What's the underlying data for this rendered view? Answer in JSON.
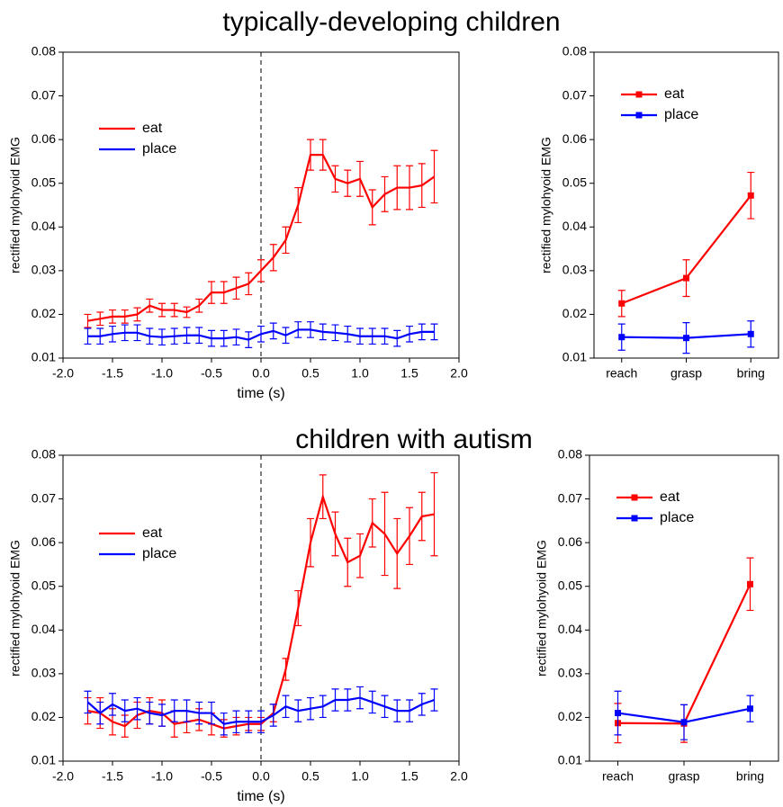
{
  "chart_data": [
    {
      "type": "line",
      "title": "typically-developing children",
      "xlabel": "time (s)",
      "ylabel": "rectified mylohyoid EMG",
      "x": [
        -1.75,
        -1.625,
        -1.5,
        -1.375,
        -1.25,
        -1.125,
        -1.0,
        -0.875,
        -0.75,
        -0.625,
        -0.5,
        -0.375,
        -0.25,
        -0.125,
        0,
        0.125,
        0.25,
        0.375,
        0.5,
        0.625,
        0.75,
        0.875,
        1.0,
        1.125,
        1.25,
        1.375,
        1.5,
        1.625,
        1.75
      ],
      "series": [
        {
          "name": "eat",
          "color": "#ff0000",
          "values": [
            0.0185,
            0.019,
            0.0195,
            0.0195,
            0.02,
            0.022,
            0.021,
            0.021,
            0.0205,
            0.022,
            0.025,
            0.025,
            0.026,
            0.027,
            0.03,
            0.033,
            0.037,
            0.045,
            0.0565,
            0.0565,
            0.051,
            0.05,
            0.051,
            0.0445,
            0.0475,
            0.049,
            0.049,
            0.0495,
            0.0515
          ],
          "errors": [
            0.0015,
            0.0015,
            0.0015,
            0.0015,
            0.0015,
            0.0015,
            0.0015,
            0.0015,
            0.0012,
            0.0015,
            0.0025,
            0.0025,
            0.0025,
            0.0025,
            0.0025,
            0.003,
            0.003,
            0.004,
            0.0035,
            0.0035,
            0.003,
            0.003,
            0.004,
            0.004,
            0.004,
            0.005,
            0.005,
            0.005,
            0.006
          ]
        },
        {
          "name": "place",
          "color": "#0000ff",
          "values": [
            0.015,
            0.015,
            0.0155,
            0.0158,
            0.0158,
            0.015,
            0.0148,
            0.015,
            0.0152,
            0.0152,
            0.0145,
            0.0145,
            0.0148,
            0.0142,
            0.0155,
            0.0162,
            0.0152,
            0.0165,
            0.0165,
            0.016,
            0.0158,
            0.0155,
            0.015,
            0.015,
            0.015,
            0.0145,
            0.0155,
            0.016,
            0.016
          ],
          "errors": [
            0.0018,
            0.0018,
            0.0018,
            0.0018,
            0.0018,
            0.0018,
            0.0018,
            0.0018,
            0.0018,
            0.0018,
            0.0018,
            0.0018,
            0.0018,
            0.0018,
            0.0018,
            0.0018,
            0.0018,
            0.0018,
            0.0018,
            0.0018,
            0.0018,
            0.0018,
            0.0018,
            0.0018,
            0.0018,
            0.0018,
            0.0018,
            0.0018,
            0.0018
          ]
        }
      ],
      "xlim": [
        -2,
        2
      ],
      "xticks": [
        {
          "value": -2,
          "label": "-2.0"
        },
        {
          "value": -1.5,
          "label": "-1.5"
        },
        {
          "value": -1,
          "label": "-1.0"
        },
        {
          "value": -0.5,
          "label": "-0.5"
        },
        {
          "value": 0,
          "label": "0.0"
        },
        {
          "value": 0.5,
          "label": "0.5"
        },
        {
          "value": 1,
          "label": "1.0"
        },
        {
          "value": 1.5,
          "label": "1.5"
        },
        {
          "value": 2,
          "label": "2.0"
        }
      ],
      "ylim": [
        0.01,
        0.08
      ],
      "yticks": [
        0.01,
        0.02,
        0.03,
        0.04,
        0.05,
        0.06,
        0.07,
        0.08
      ],
      "vline": 0,
      "legend": "upper left"
    },
    {
      "type": "line",
      "ylabel": "rectified mylohyoid EMG",
      "categories": [
        "reach",
        "grasp",
        "bring"
      ],
      "series": [
        {
          "name": "eat",
          "color": "#ff0000",
          "values": [
            0.0225,
            0.0283,
            0.0472
          ],
          "errors": [
            0.003,
            0.0042,
            0.0053
          ]
        },
        {
          "name": "place",
          "color": "#0000ff",
          "values": [
            0.0148,
            0.0146,
            0.0155
          ],
          "errors": [
            0.003,
            0.0035,
            0.003
          ]
        }
      ],
      "ylim": [
        0.01,
        0.08
      ],
      "yticks": [
        0.01,
        0.02,
        0.03,
        0.04,
        0.05,
        0.06,
        0.07,
        0.08
      ],
      "markers": "square",
      "legend": "upper left"
    },
    {
      "type": "line",
      "title": "children with autism",
      "xlabel": "time (s)",
      "ylabel": "rectified mylohyoid EMG",
      "x": [
        -1.75,
        -1.625,
        -1.5,
        -1.375,
        -1.25,
        -1.125,
        -1.0,
        -0.875,
        -0.75,
        -0.625,
        -0.5,
        -0.375,
        -0.25,
        -0.125,
        0,
        0.125,
        0.25,
        0.375,
        0.5,
        0.625,
        0.75,
        0.875,
        1.0,
        1.125,
        1.25,
        1.375,
        1.5,
        1.625,
        1.75
      ],
      "series": [
        {
          "name": "eat",
          "color": "#ff0000",
          "values": [
            0.0215,
            0.021,
            0.019,
            0.018,
            0.0205,
            0.0215,
            0.021,
            0.0185,
            0.019,
            0.0195,
            0.0185,
            0.0175,
            0.018,
            0.0185,
            0.0185,
            0.021,
            0.031,
            0.045,
            0.06,
            0.0705,
            0.062,
            0.0555,
            0.057,
            0.0645,
            0.062,
            0.0575,
            0.0615,
            0.066,
            0.0665
          ],
          "errors": [
            0.003,
            0.0035,
            0.003,
            0.0025,
            0.003,
            0.003,
            0.003,
            0.003,
            0.0025,
            0.0025,
            0.0025,
            0.002,
            0.002,
            0.0015,
            0.0015,
            0.002,
            0.0025,
            0.004,
            0.0055,
            0.005,
            0.005,
            0.0055,
            0.005,
            0.0055,
            0.0095,
            0.008,
            0.0065,
            0.0055,
            0.0095
          ]
        },
        {
          "name": "place",
          "color": "#0000ff",
          "values": [
            0.0235,
            0.021,
            0.023,
            0.0215,
            0.022,
            0.021,
            0.0205,
            0.0215,
            0.0215,
            0.021,
            0.021,
            0.0185,
            0.019,
            0.019,
            0.019,
            0.0205,
            0.0225,
            0.0215,
            0.022,
            0.0225,
            0.024,
            0.024,
            0.0245,
            0.0235,
            0.0225,
            0.0215,
            0.0215,
            0.023,
            0.024
          ],
          "errors": [
            0.0025,
            0.0025,
            0.0025,
            0.0025,
            0.0025,
            0.0025,
            0.0025,
            0.0025,
            0.0025,
            0.0025,
            0.0025,
            0.0025,
            0.0025,
            0.0025,
            0.0025,
            0.0025,
            0.0025,
            0.0025,
            0.0025,
            0.0025,
            0.0025,
            0.0025,
            0.0025,
            0.0025,
            0.0025,
            0.0025,
            0.0025,
            0.0025,
            0.0025
          ]
        }
      ],
      "xlim": [
        -2,
        2
      ],
      "xticks": [
        {
          "value": -2,
          "label": "-2.0"
        },
        {
          "value": -1.5,
          "label": "-1.5"
        },
        {
          "value": -1,
          "label": "-1.0"
        },
        {
          "value": -0.5,
          "label": "-0.5"
        },
        {
          "value": 0,
          "label": "0.0"
        },
        {
          "value": 0.5,
          "label": "0.5"
        },
        {
          "value": 1,
          "label": "1.0"
        },
        {
          "value": 1.5,
          "label": "1.5"
        },
        {
          "value": 2,
          "label": "2.0"
        }
      ],
      "ylim": [
        0.01,
        0.08
      ],
      "yticks": [
        0.01,
        0.02,
        0.03,
        0.04,
        0.05,
        0.06,
        0.07,
        0.08
      ],
      "vline": 0,
      "legend": "upper left"
    },
    {
      "type": "line",
      "ylabel": "rectified mylohyoid EMG",
      "categories": [
        "reach",
        "grasp",
        "bring"
      ],
      "series": [
        {
          "name": "eat",
          "color": "#ff0000",
          "values": [
            0.0187,
            0.0186,
            0.0505
          ],
          "errors": [
            0.0045,
            0.0043,
            0.006
          ]
        },
        {
          "name": "place",
          "color": "#0000ff",
          "values": [
            0.021,
            0.0189,
            0.022
          ],
          "errors": [
            0.005,
            0.004,
            0.003
          ]
        }
      ],
      "ylim": [
        0.01,
        0.08
      ],
      "yticks": [
        0.01,
        0.02,
        0.03,
        0.04,
        0.05,
        0.06,
        0.07,
        0.08
      ],
      "markers": "square",
      "legend": "upper left"
    }
  ]
}
